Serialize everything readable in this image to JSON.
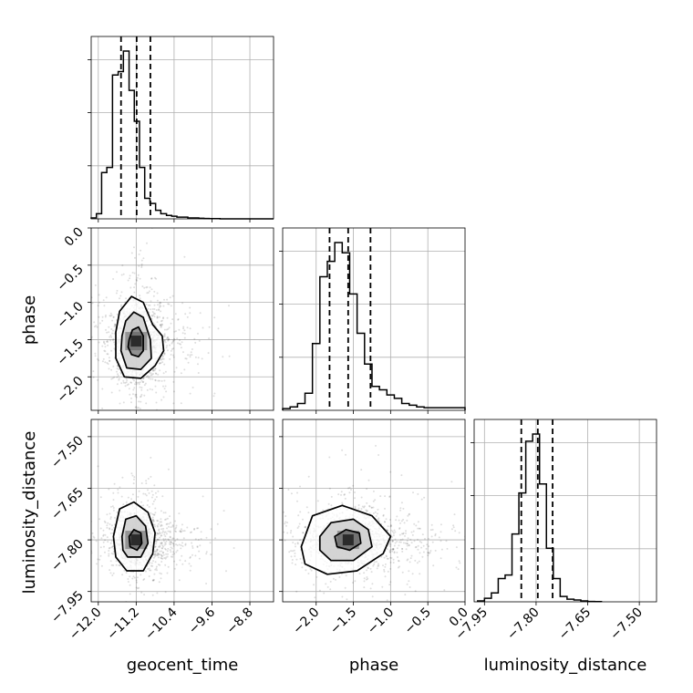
{
  "chart_data": {
    "type": "corner",
    "title": "",
    "parameters": [
      "geocent_time",
      "phase",
      "luminosity_distance"
    ],
    "axis_labels": {
      "geocent_time": "geocent_time",
      "phase": "phase",
      "luminosity_distance": "luminosity_distance"
    },
    "ranges": {
      "geocent_time": [
        -12.15,
        -8.3
      ],
      "phase": [
        -2.45,
        0.0
      ],
      "luminosity_distance": [
        -7.98,
        -7.45
      ]
    },
    "ticks": {
      "geocent_time": [
        "-12.0",
        "-11.2",
        "-10.4",
        "-9.6",
        "-8.8"
      ],
      "phase": [
        "-2.0",
        "-1.5",
        "-1.0",
        "-0.5",
        "0.0"
      ],
      "luminosity_distance": [
        "-7.95",
        "-7.80",
        "-7.65",
        "-7.50"
      ]
    },
    "tick_values": {
      "geocent_time": [
        -12.0,
        -11.2,
        -10.4,
        -9.6,
        -8.8
      ],
      "phase": [
        -2.0,
        -1.5,
        -1.0,
        -0.5,
        0.0
      ],
      "luminosity_distance": [
        -7.95,
        -7.8,
        -7.65,
        -7.5
      ]
    },
    "grid": true,
    "quantiles": {
      "geocent_time": [
        -11.52,
        -11.19,
        -10.9
      ],
      "phase": [
        -1.82,
        -1.57,
        -1.27
      ],
      "luminosity_distance": [
        -7.843,
        -7.795,
        -7.752
      ]
    },
    "histograms": {
      "geocent_time": {
        "edges": [
          -12.15,
          -12.04,
          -11.93,
          -11.82,
          -11.7,
          -11.58,
          -11.47,
          -11.35,
          -11.24,
          -11.13,
          -11.02,
          -10.91,
          -10.79,
          -10.68,
          -10.56,
          -10.45,
          -10.34,
          -10.22,
          -10.11,
          -10.0,
          -9.88,
          -9.77,
          -9.66,
          -9.54,
          -9.43,
          -9.32,
          -9.2,
          -9.09,
          -8.98,
          -8.86,
          -8.75,
          -8.63,
          -8.52,
          -8.41,
          -8.3
        ],
        "counts": [
          0.005,
          0.03,
          0.27,
          0.3,
          0.84,
          0.86,
          0.98,
          0.75,
          0.57,
          0.3,
          0.12,
          0.09,
          0.05,
          0.03,
          0.02,
          0.015,
          0.01,
          0.01,
          0.005,
          0.005,
          0.003,
          0.002,
          0.001,
          0.001,
          0.0,
          0.0,
          0.0,
          0.0,
          0.0,
          0.0,
          0.0,
          0.0,
          0.0,
          0.0
        ]
      },
      "phase": {
        "edges": [
          -2.45,
          -2.35,
          -2.25,
          -2.15,
          -2.05,
          -1.95,
          -1.85,
          -1.75,
          -1.65,
          -1.55,
          -1.45,
          -1.35,
          -1.25,
          -1.15,
          -1.05,
          -0.95,
          -0.85,
          -0.75,
          -0.65,
          -0.55,
          -0.45,
          -0.35,
          -0.25,
          -0.15,
          -0.05,
          0.0
        ],
        "counts": [
          0.01,
          0.02,
          0.04,
          0.1,
          0.39,
          0.78,
          0.87,
          0.98,
          0.92,
          0.68,
          0.45,
          0.27,
          0.14,
          0.12,
          0.09,
          0.07,
          0.04,
          0.03,
          0.02,
          0.015,
          0.015,
          0.015,
          0.015,
          0.015,
          0.015
        ]
      },
      "luminosity_distance": {
        "edges": [
          -7.97,
          -7.95,
          -7.93,
          -7.91,
          -7.89,
          -7.87,
          -7.85,
          -7.83,
          -7.81,
          -7.79,
          -7.77,
          -7.75,
          -7.73,
          -7.71,
          -7.69,
          -7.67,
          -7.65,
          -7.63,
          -7.61
        ],
        "counts": [
          0.005,
          0.02,
          0.05,
          0.13,
          0.15,
          0.38,
          0.61,
          0.9,
          0.94,
          0.66,
          0.3,
          0.13,
          0.03,
          0.015,
          0.01,
          0.005,
          0.002,
          0.001
        ]
      }
    },
    "pairs": [
      {
        "x": "geocent_time",
        "y": "phase",
        "center": [
          -11.2,
          -1.52
        ],
        "spread": [
          0.25,
          0.28
        ],
        "contours": [
          [
            [
              -11.63,
              -1.4
            ],
            [
              -11.55,
              -1.12
            ],
            [
              -11.3,
              -0.92
            ],
            [
              -11.05,
              -1.0
            ],
            [
              -10.85,
              -1.3
            ],
            [
              -10.65,
              -1.45
            ],
            [
              -10.62,
              -1.65
            ],
            [
              -10.8,
              -1.85
            ],
            [
              -11.1,
              -2.02
            ],
            [
              -11.45,
              -2.0
            ],
            [
              -11.63,
              -1.75
            ]
          ],
          [
            [
              -11.5,
              -1.45
            ],
            [
              -11.42,
              -1.25
            ],
            [
              -11.25,
              -1.13
            ],
            [
              -11.05,
              -1.2
            ],
            [
              -10.9,
              -1.5
            ],
            [
              -10.88,
              -1.75
            ],
            [
              -11.1,
              -1.9
            ],
            [
              -11.4,
              -1.88
            ],
            [
              -11.52,
              -1.65
            ]
          ],
          [
            [
              -11.35,
              -1.5
            ],
            [
              -11.28,
              -1.37
            ],
            [
              -11.15,
              -1.33
            ],
            [
              -11.05,
              -1.45
            ],
            [
              -11.05,
              -1.65
            ],
            [
              -11.15,
              -1.73
            ],
            [
              -11.3,
              -1.7
            ],
            [
              -11.37,
              -1.6
            ]
          ]
        ]
      },
      {
        "x": "geocent_time",
        "y": "luminosity_distance",
        "center": [
          -11.2,
          -7.8
        ],
        "spread": [
          0.25,
          0.04
        ],
        "contours": [
          [
            [
              -11.68,
              -7.79
            ],
            [
              -11.55,
              -7.71
            ],
            [
              -11.25,
              -7.69
            ],
            [
              -10.95,
              -7.72
            ],
            [
              -10.8,
              -7.78
            ],
            [
              -10.85,
              -7.84
            ],
            [
              -11.05,
              -7.89
            ],
            [
              -11.4,
              -7.89
            ],
            [
              -11.63,
              -7.85
            ]
          ],
          [
            [
              -11.5,
              -7.79
            ],
            [
              -11.42,
              -7.74
            ],
            [
              -11.2,
              -7.73
            ],
            [
              -11.0,
              -7.76
            ],
            [
              -10.95,
              -7.81
            ],
            [
              -11.1,
              -7.85
            ],
            [
              -11.38,
              -7.85
            ],
            [
              -11.48,
              -7.83
            ]
          ],
          [
            [
              -11.35,
              -7.79
            ],
            [
              -11.25,
              -7.77
            ],
            [
              -11.1,
              -7.78
            ],
            [
              -11.08,
              -7.81
            ],
            [
              -11.18,
              -7.83
            ],
            [
              -11.33,
              -7.82
            ]
          ]
        ]
      },
      {
        "x": "phase",
        "y": "luminosity_distance",
        "center": [
          -1.57,
          -7.8
        ],
        "spread": [
          0.28,
          0.04
        ],
        "contours": [
          [
            [
              -2.2,
              -7.82
            ],
            [
              -2.05,
              -7.73
            ],
            [
              -1.65,
              -7.7
            ],
            [
              -1.25,
              -7.73
            ],
            [
              -1.0,
              -7.79
            ],
            [
              -1.1,
              -7.84
            ],
            [
              -1.45,
              -7.89
            ],
            [
              -1.85,
              -7.9
            ],
            [
              -2.15,
              -7.87
            ]
          ],
          [
            [
              -1.95,
              -7.79
            ],
            [
              -1.8,
              -7.75
            ],
            [
              -1.5,
              -7.74
            ],
            [
              -1.3,
              -7.77
            ],
            [
              -1.25,
              -7.82
            ],
            [
              -1.5,
              -7.86
            ],
            [
              -1.8,
              -7.86
            ],
            [
              -1.95,
              -7.83
            ]
          ],
          [
            [
              -1.75,
              -7.79
            ],
            [
              -1.6,
              -7.77
            ],
            [
              -1.42,
              -7.78
            ],
            [
              -1.4,
              -7.81
            ],
            [
              -1.55,
              -7.83
            ],
            [
              -1.72,
              -7.82
            ]
          ]
        ]
      }
    ]
  }
}
